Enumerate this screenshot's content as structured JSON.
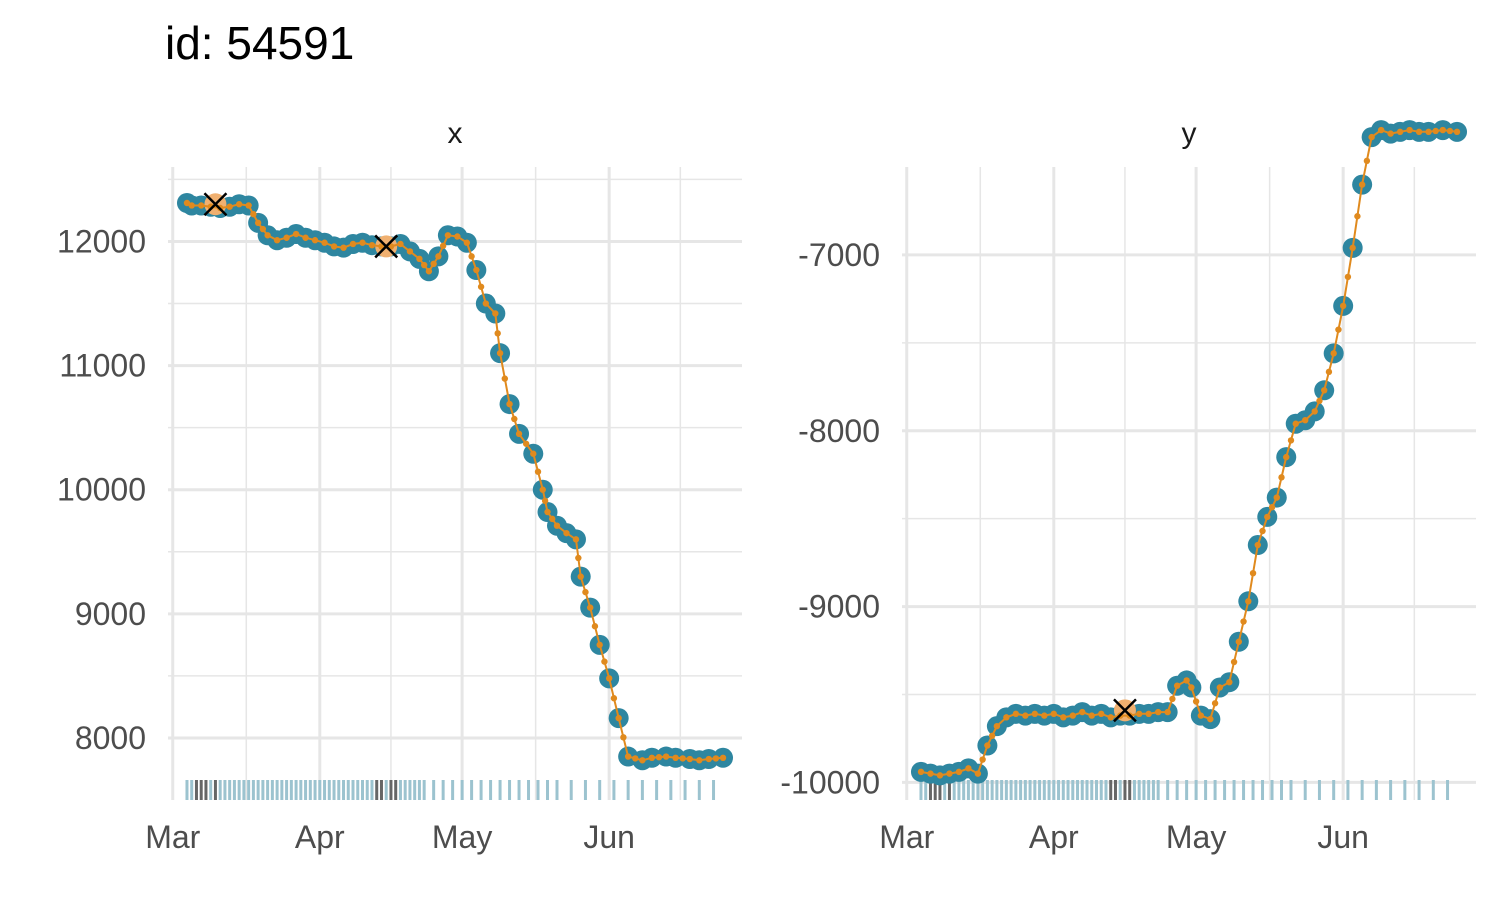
{
  "title": "id: 54591",
  "colors": {
    "observed": "#2e86a0",
    "smooth": "#e08a1e",
    "highlight": "#f0b070",
    "rug": "#9cc3cf",
    "rug_dark": "#666666",
    "grid": "#e6e6e6"
  },
  "chart_data": [
    {
      "type": "line",
      "strip": "x",
      "x_type": "date",
      "xlim": [
        "2024-02-29",
        "2024-06-29"
      ],
      "ylim": [
        7500,
        12600
      ],
      "x_ticks": [
        {
          "label": "Mar",
          "date": "2024-03-01"
        },
        {
          "label": "Apr",
          "date": "2024-04-01"
        },
        {
          "label": "May",
          "date": "2024-05-01"
        },
        {
          "label": "Jun",
          "date": "2024-06-01"
        }
      ],
      "y_ticks": [
        {
          "label": "8000",
          "value": 8000
        },
        {
          "label": "9000",
          "value": 9000
        },
        {
          "label": "10000",
          "value": 10000
        },
        {
          "label": "11000",
          "value": 11000
        },
        {
          "label": "12000",
          "value": 12000
        }
      ],
      "grid": true,
      "highlight": [
        {
          "date": "2024-03-10",
          "value": 12300
        },
        {
          "date": "2024-04-15",
          "value": 11960
        }
      ],
      "rug_dark_dates": [
        "2024-03-06",
        "2024-03-07",
        "2024-03-08",
        "2024-03-10",
        "2024-04-13",
        "2024-04-14",
        "2024-04-16",
        "2024-04-17"
      ],
      "series": [
        {
          "x": [
            "2024-03-04",
            "2024-03-05",
            "2024-03-07",
            "2024-03-09",
            "2024-03-11",
            "2024-03-13",
            "2024-03-15",
            "2024-03-17",
            "2024-03-19",
            "2024-03-21",
            "2024-03-23",
            "2024-03-25",
            "2024-03-27",
            "2024-03-29",
            "2024-03-31",
            "2024-04-02",
            "2024-04-04",
            "2024-04-06",
            "2024-04-08",
            "2024-04-10",
            "2024-04-12",
            "2024-04-14",
            "2024-04-16",
            "2024-04-18",
            "2024-04-20",
            "2024-04-22",
            "2024-04-24",
            "2024-04-26",
            "2024-04-28",
            "2024-04-30",
            "2024-05-02",
            "2024-05-04",
            "2024-05-06",
            "2024-05-08",
            "2024-05-09",
            "2024-05-11",
            "2024-05-13",
            "2024-05-16",
            "2024-05-18",
            "2024-05-19",
            "2024-05-21",
            "2024-05-23",
            "2024-05-25",
            "2024-05-26",
            "2024-05-28",
            "2024-05-30",
            "2024-06-01",
            "2024-06-03",
            "2024-06-05",
            "2024-06-08",
            "2024-06-10",
            "2024-06-13",
            "2024-06-15",
            "2024-06-18",
            "2024-06-20",
            "2024-06-22",
            "2024-06-25"
          ],
          "values": [
            12310,
            12290,
            12290,
            12280,
            12270,
            12280,
            12300,
            12290,
            12150,
            12050,
            12010,
            12030,
            12060,
            12030,
            12010,
            11990,
            11960,
            11950,
            11980,
            11990,
            11970,
            11960,
            11960,
            11980,
            11920,
            11860,
            11760,
            11880,
            12050,
            12040,
            11990,
            11770,
            11500,
            11420,
            11100,
            10690,
            10450,
            10290,
            10000,
            9820,
            9710,
            9650,
            9600,
            9300,
            9050,
            8750,
            8480,
            8160,
            7850,
            7820,
            7840,
            7850,
            7840,
            7830,
            7820,
            7830,
            7840
          ]
        }
      ]
    },
    {
      "type": "line",
      "strip": "y",
      "x_type": "date",
      "xlim": [
        "2024-02-29",
        "2024-06-29"
      ],
      "ylim": [
        -10100,
        -6500
      ],
      "x_ticks": [
        {
          "label": "Mar",
          "date": "2024-03-01"
        },
        {
          "label": "Apr",
          "date": "2024-04-01"
        },
        {
          "label": "May",
          "date": "2024-05-01"
        },
        {
          "label": "Jun",
          "date": "2024-06-01"
        }
      ],
      "y_ticks": [
        {
          "label": "-10000",
          "value": -10000
        },
        {
          "label": "-9000",
          "value": -9000
        },
        {
          "label": "-8000",
          "value": -8000
        },
        {
          "label": "-7000",
          "value": -7000
        }
      ],
      "grid": true,
      "highlight": [
        {
          "date": "2024-04-16",
          "value": -9590
        }
      ],
      "rug_dark_dates": [
        "2024-03-06",
        "2024-03-07",
        "2024-03-08",
        "2024-03-10",
        "2024-04-13",
        "2024-04-14",
        "2024-04-16",
        "2024-04-17"
      ],
      "series": [
        {
          "x": [
            "2024-03-04",
            "2024-03-06",
            "2024-03-08",
            "2024-03-10",
            "2024-03-12",
            "2024-03-14",
            "2024-03-16",
            "2024-03-18",
            "2024-03-20",
            "2024-03-22",
            "2024-03-24",
            "2024-03-26",
            "2024-03-28",
            "2024-03-30",
            "2024-04-01",
            "2024-04-03",
            "2024-04-05",
            "2024-04-07",
            "2024-04-09",
            "2024-04-11",
            "2024-04-13",
            "2024-04-15",
            "2024-04-17",
            "2024-04-19",
            "2024-04-21",
            "2024-04-23",
            "2024-04-25",
            "2024-04-27",
            "2024-04-29",
            "2024-04-30",
            "2024-05-02",
            "2024-05-04",
            "2024-05-06",
            "2024-05-08",
            "2024-05-10",
            "2024-05-12",
            "2024-05-14",
            "2024-05-16",
            "2024-05-18",
            "2024-05-20",
            "2024-05-22",
            "2024-05-24",
            "2024-05-26",
            "2024-05-28",
            "2024-05-30",
            "2024-06-01",
            "2024-06-03",
            "2024-06-05",
            "2024-06-07",
            "2024-06-09",
            "2024-06-11",
            "2024-06-13",
            "2024-06-15",
            "2024-06-17",
            "2024-06-19",
            "2024-06-22",
            "2024-06-25"
          ],
          "values": [
            -9940,
            -9950,
            -9960,
            -9950,
            -9940,
            -9920,
            -9950,
            -9790,
            -9680,
            -9630,
            -9610,
            -9620,
            -9610,
            -9620,
            -9610,
            -9630,
            -9620,
            -9600,
            -9620,
            -9610,
            -9630,
            -9620,
            -9620,
            -9610,
            -9610,
            -9600,
            -9600,
            -9450,
            -9420,
            -9460,
            -9620,
            -9640,
            -9460,
            -9430,
            -9200,
            -8970,
            -8650,
            -8490,
            -8380,
            -8150,
            -7960,
            -7940,
            -7890,
            -7770,
            -7560,
            -7290,
            -6960,
            -6600,
            -6330,
            -6290,
            -6310,
            -6300,
            -6290,
            -6300,
            -6300,
            -6290,
            -6300
          ]
        }
      ]
    }
  ]
}
